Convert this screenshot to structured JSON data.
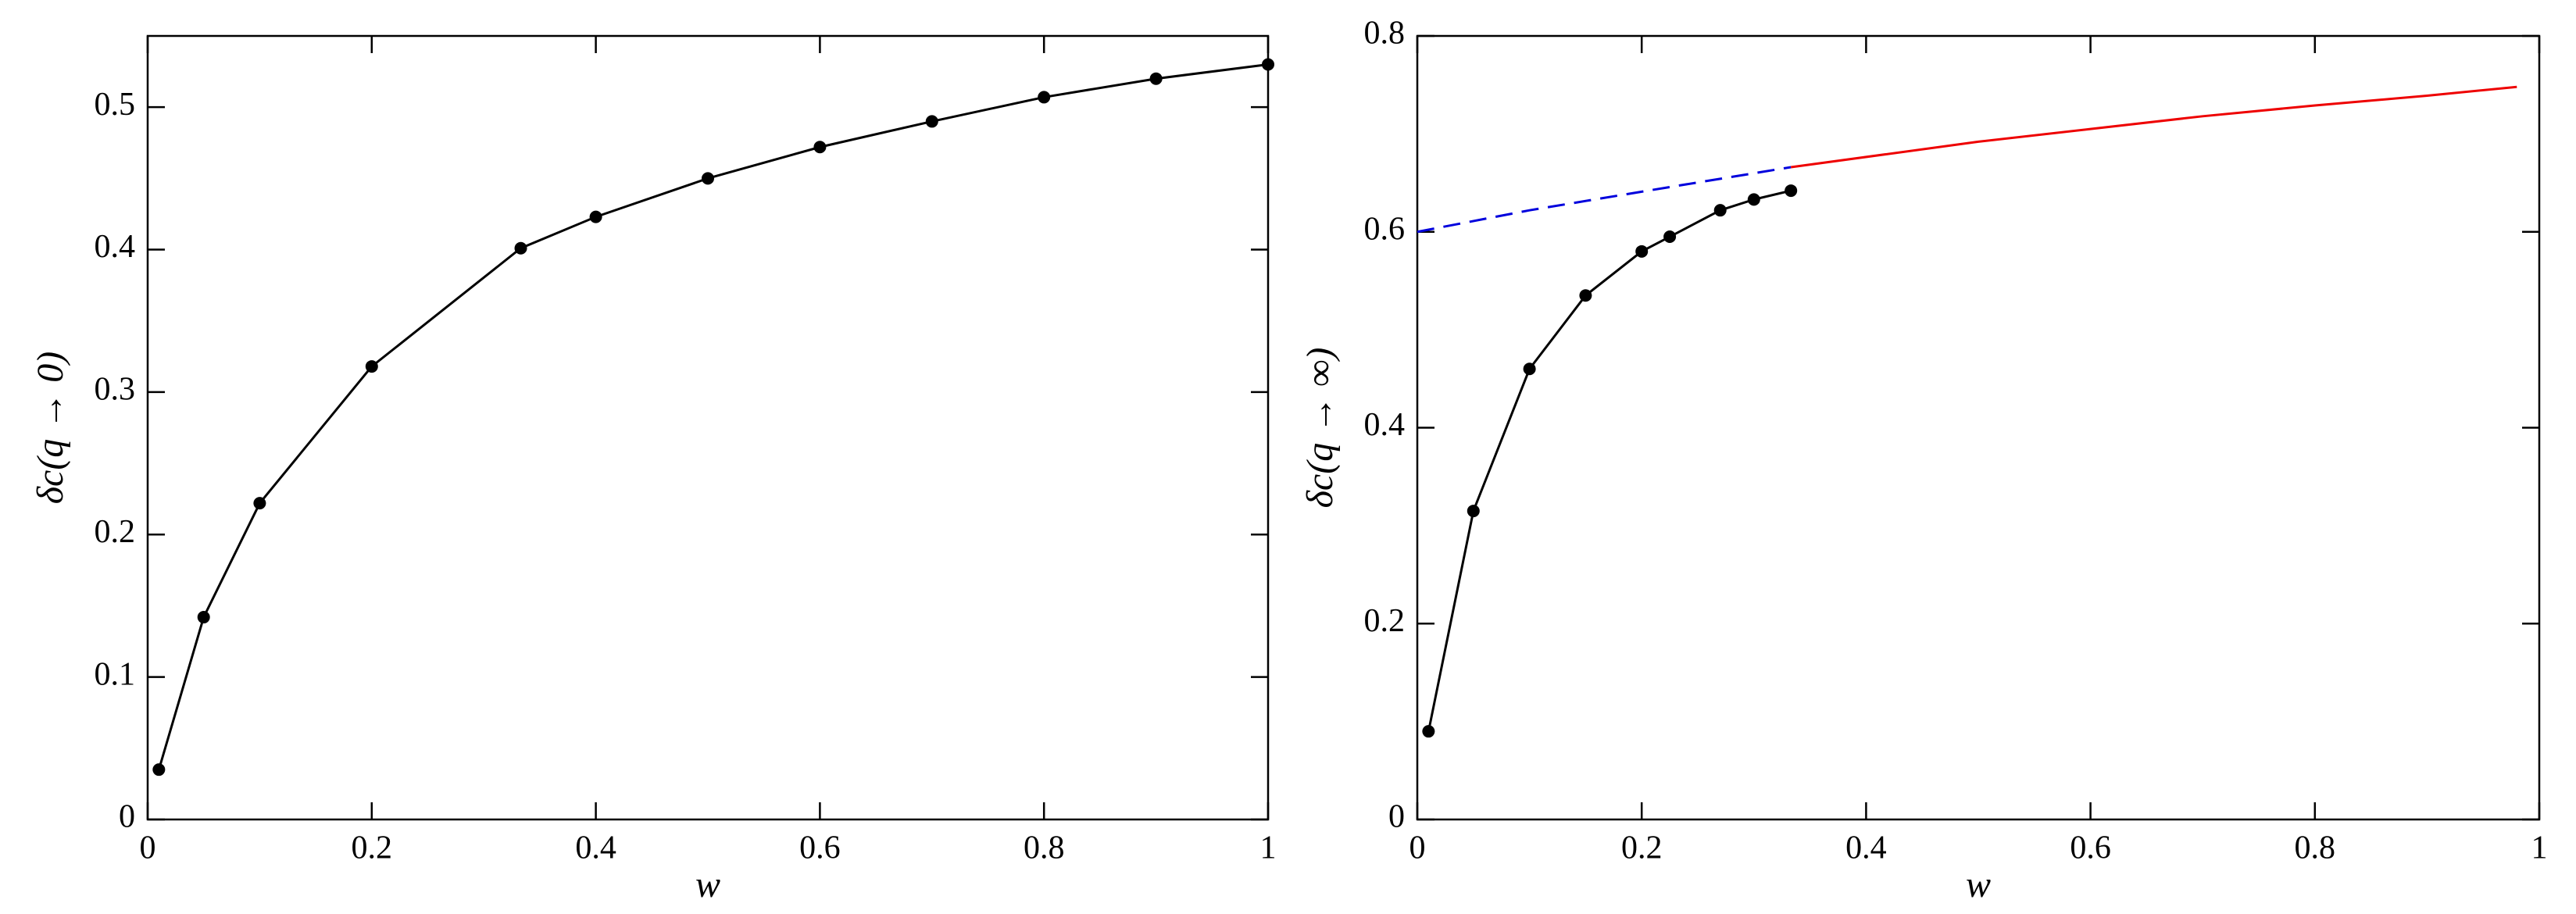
{
  "chart_data": [
    {
      "type": "line",
      "x_label": "w",
      "y_label": "δc(q → 0)",
      "xlim": [
        0,
        1
      ],
      "ylim": [
        0,
        0.55
      ],
      "xticks": [
        0,
        0.2,
        0.4,
        0.6,
        0.8,
        1
      ],
      "yticks": [
        0,
        0.1,
        0.2,
        0.3,
        0.4,
        0.5
      ],
      "series": [
        {
          "color": "#000000",
          "style": "solid",
          "markers": true,
          "x": [
            0.01,
            0.05,
            0.1,
            0.2,
            0.333,
            0.4,
            0.5,
            0.6,
            0.7,
            0.8,
            0.9,
            1.0
          ],
          "values": [
            0.035,
            0.142,
            0.222,
            0.318,
            0.401,
            0.423,
            0.45,
            0.472,
            0.49,
            0.507,
            0.52,
            0.53
          ]
        }
      ]
    },
    {
      "type": "line",
      "x_label": "w",
      "y_label": "δc(q → ∞)",
      "xlim": [
        0,
        1
      ],
      "ylim": [
        0,
        0.8
      ],
      "xticks": [
        0,
        0.2,
        0.4,
        0.6,
        0.8,
        1
      ],
      "yticks": [
        0,
        0.2,
        0.4,
        0.6,
        0.8
      ],
      "series": [
        {
          "color": "#000000",
          "style": "solid",
          "markers": true,
          "x": [
            0.01,
            0.05,
            0.1,
            0.15,
            0.2,
            0.225,
            0.27,
            0.3,
            0.333
          ],
          "values": [
            0.09,
            0.315,
            0.46,
            0.535,
            0.58,
            0.595,
            0.622,
            0.633,
            0.642
          ]
        },
        {
          "color": "#0000dd",
          "style": "dashed",
          "markers": false,
          "x": [
            0,
            0.1,
            0.2,
            0.333
          ],
          "values": [
            0.6,
            0.622,
            0.641,
            0.666
          ]
        },
        {
          "color": "#ee0000",
          "style": "solid",
          "markers": false,
          "x": [
            0.333,
            0.5,
            0.6,
            0.7,
            0.8,
            0.9,
            0.98
          ],
          "values": [
            0.666,
            0.692,
            0.705,
            0.718,
            0.729,
            0.739,
            0.748
          ]
        }
      ]
    }
  ]
}
